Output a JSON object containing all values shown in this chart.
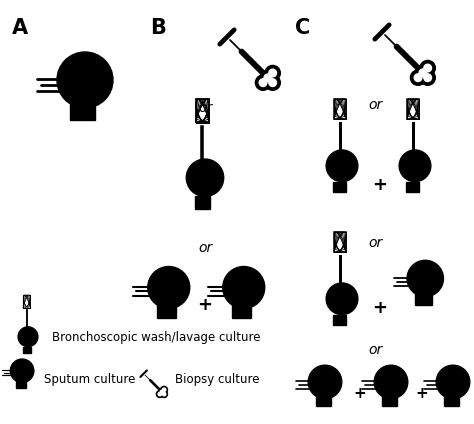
{
  "background_color": "#ffffff",
  "text_color": "#000000",
  "section_labels": [
    "A",
    "B",
    "C"
  ],
  "or_text": "or",
  "plus_text": "+",
  "legend_texts": [
    "Bronchoscopic wash/lavage culture",
    "Sputum culture",
    "Biopsy culture"
  ],
  "font_size_section": 15,
  "font_size_or": 10,
  "font_size_legend": 8.5
}
